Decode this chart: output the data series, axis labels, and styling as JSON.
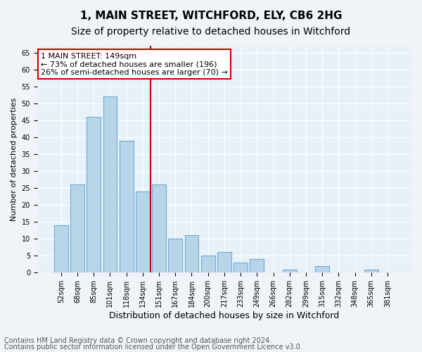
{
  "title": "1, MAIN STREET, WITCHFORD, ELY, CB6 2HG",
  "subtitle": "Size of property relative to detached houses in Witchford",
  "xlabel": "Distribution of detached houses by size in Witchford",
  "ylabel": "Number of detached properties",
  "categories": [
    "52sqm",
    "68sqm",
    "85sqm",
    "101sqm",
    "118sqm",
    "134sqm",
    "151sqm",
    "167sqm",
    "184sqm",
    "200sqm",
    "217sqm",
    "233sqm",
    "249sqm",
    "266sqm",
    "282sqm",
    "299sqm",
    "315sqm",
    "332sqm",
    "348sqm",
    "365sqm",
    "381sqm"
  ],
  "values": [
    14,
    26,
    46,
    52,
    39,
    24,
    26,
    10,
    11,
    5,
    6,
    3,
    4,
    0,
    1,
    0,
    2,
    0,
    0,
    1,
    0
  ],
  "bar_color": "#b8d4e8",
  "bar_edge_color": "#6aaed6",
  "vline_x_index": 6,
  "vline_color": "#cc0000",
  "annotation_box_text": "1 MAIN STREET: 149sqm\n← 73% of detached houses are smaller (196)\n26% of semi-detached houses are larger (70) →",
  "annotation_box_color": "#cc0000",
  "ylim": [
    0,
    67
  ],
  "yticks": [
    0,
    5,
    10,
    15,
    20,
    25,
    30,
    35,
    40,
    45,
    50,
    55,
    60,
    65
  ],
  "plot_background": "#e8f0f8",
  "fig_background": "#f0f4f8",
  "footer_line1": "Contains HM Land Registry data © Crown copyright and database right 2024.",
  "footer_line2": "Contains public sector information licensed under the Open Government Licence v3.0.",
  "title_fontsize": 11,
  "subtitle_fontsize": 10,
  "xlabel_fontsize": 9,
  "ylabel_fontsize": 8,
  "tick_fontsize": 7,
  "annotation_fontsize": 8,
  "footer_fontsize": 7
}
